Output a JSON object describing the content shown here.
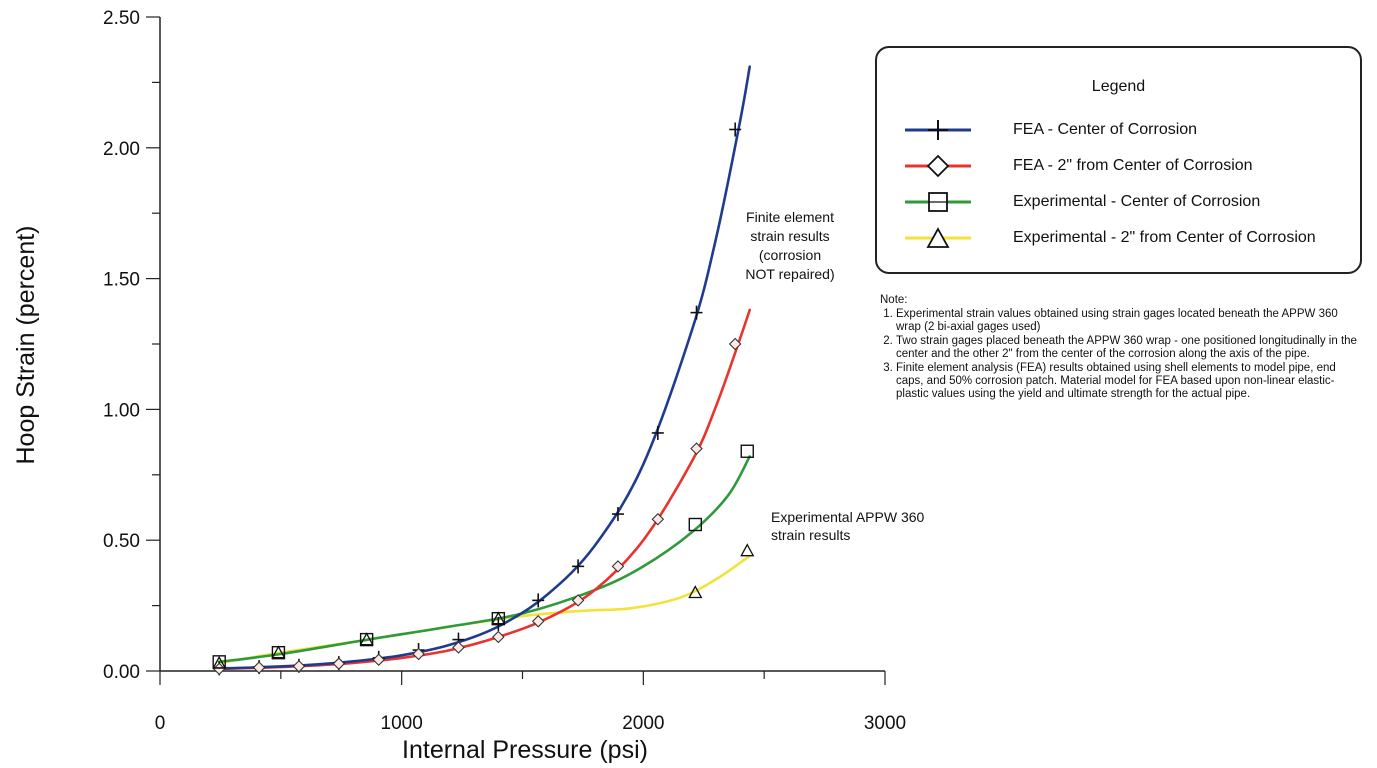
{
  "chart_data": {
    "type": "line",
    "xlabel": "Internal Pressure (psi)",
    "ylabel": "Hoop Strain (percent)",
    "xlim": [
      0,
      3000
    ],
    "ylim": [
      0,
      2.5
    ],
    "xticks": [
      "0",
      "1000",
      "2000",
      "3000"
    ],
    "yticks": [
      "0.00",
      "0.50",
      "1.00",
      "1.50",
      "2.00",
      "2.50"
    ],
    "grid": false,
    "legend_placement": "top-right",
    "legend_title": "Legend",
    "series": [
      {
        "name": "FEA - Center of Corrosion",
        "color": "#1f3b8f",
        "marker": "plus",
        "x": [
          245,
          410,
          575,
          740,
          905,
          1070,
          1235,
          1400,
          1565,
          1730,
          1895,
          2060,
          2220,
          2380
        ],
        "y": [
          0.01,
          0.015,
          0.02,
          0.03,
          0.05,
          0.08,
          0.12,
          0.18,
          0.27,
          0.4,
          0.6,
          0.91,
          1.37,
          2.07
        ],
        "curve_x": [
          245,
          400,
          600,
          800,
          1000,
          1200,
          1400,
          1600,
          1800,
          2000,
          2200,
          2300,
          2400,
          2440
        ],
        "curve_y": [
          0.01,
          0.014,
          0.022,
          0.037,
          0.06,
          0.1,
          0.17,
          0.29,
          0.48,
          0.79,
          1.3,
          1.65,
          2.1,
          2.31
        ]
      },
      {
        "name": "FEA - 2\" from Center of Corrosion",
        "color": "#e8342c",
        "marker": "diamond",
        "x": [
          245,
          410,
          575,
          740,
          905,
          1070,
          1235,
          1400,
          1565,
          1730,
          1895,
          2060,
          2220,
          2380
        ],
        "y": [
          0.008,
          0.013,
          0.018,
          0.028,
          0.043,
          0.065,
          0.09,
          0.13,
          0.19,
          0.27,
          0.4,
          0.58,
          0.85,
          1.25
        ],
        "curve_x": [
          245,
          400,
          600,
          800,
          1000,
          1200,
          1400,
          1600,
          1800,
          2000,
          2200,
          2300,
          2400,
          2440
        ],
        "curve_y": [
          0.008,
          0.012,
          0.019,
          0.031,
          0.05,
          0.08,
          0.13,
          0.2,
          0.31,
          0.5,
          0.8,
          1.01,
          1.27,
          1.38
        ]
      },
      {
        "name": "Experimental - Center of Corrosion",
        "color": "#2e9a3a",
        "marker": "square",
        "x": [
          245,
          490,
          855,
          1400,
          2215,
          2430
        ],
        "y": [
          0.035,
          0.07,
          0.12,
          0.2,
          0.56,
          0.84
        ],
        "curve_x": [
          245,
          500,
          860,
          1200,
          1500,
          1800,
          2000,
          2200,
          2350,
          2440
        ],
        "curve_y": [
          0.035,
          0.065,
          0.12,
          0.17,
          0.22,
          0.31,
          0.4,
          0.53,
          0.67,
          0.82
        ]
      },
      {
        "name": "Experimental - 2\" from Center of Corrosion",
        "color": "#f2e23a",
        "marker": "triangle",
        "x": [
          245,
          490,
          855,
          1400,
          2215,
          2430
        ],
        "y": [
          0.03,
          0.07,
          0.12,
          0.2,
          0.3,
          0.46
        ],
        "curve_x": [
          245,
          500,
          860,
          1200,
          1500,
          1750,
          1950,
          2150,
          2300,
          2440
        ],
        "curve_y": [
          0.03,
          0.07,
          0.12,
          0.17,
          0.21,
          0.23,
          0.24,
          0.28,
          0.35,
          0.44
        ]
      }
    ]
  },
  "annotations": {
    "fea": [
      "Finite element",
      "strain results",
      "(corrosion",
      "NOT repaired)"
    ],
    "experimental": [
      "Experimental APPW 360",
      "strain results"
    ]
  },
  "notes": {
    "heading": "Note:",
    "items": [
      "Experimental strain values obtained using strain gages located beneath the APPW 360 wrap (2 bi-axial gages used)",
      "Two strain gages placed beneath the APPW 360 wrap - one positioned longitudinally in the center and the other 2\" from the center of the corrosion along the axis of the pipe.",
      "Finite element analysis (FEA) results obtained using shell elements to model pipe, end caps, and 50% corrosion patch. Material model for FEA based upon non-linear elastic-plastic values using the yield and ultimate strength for the actual pipe."
    ]
  }
}
